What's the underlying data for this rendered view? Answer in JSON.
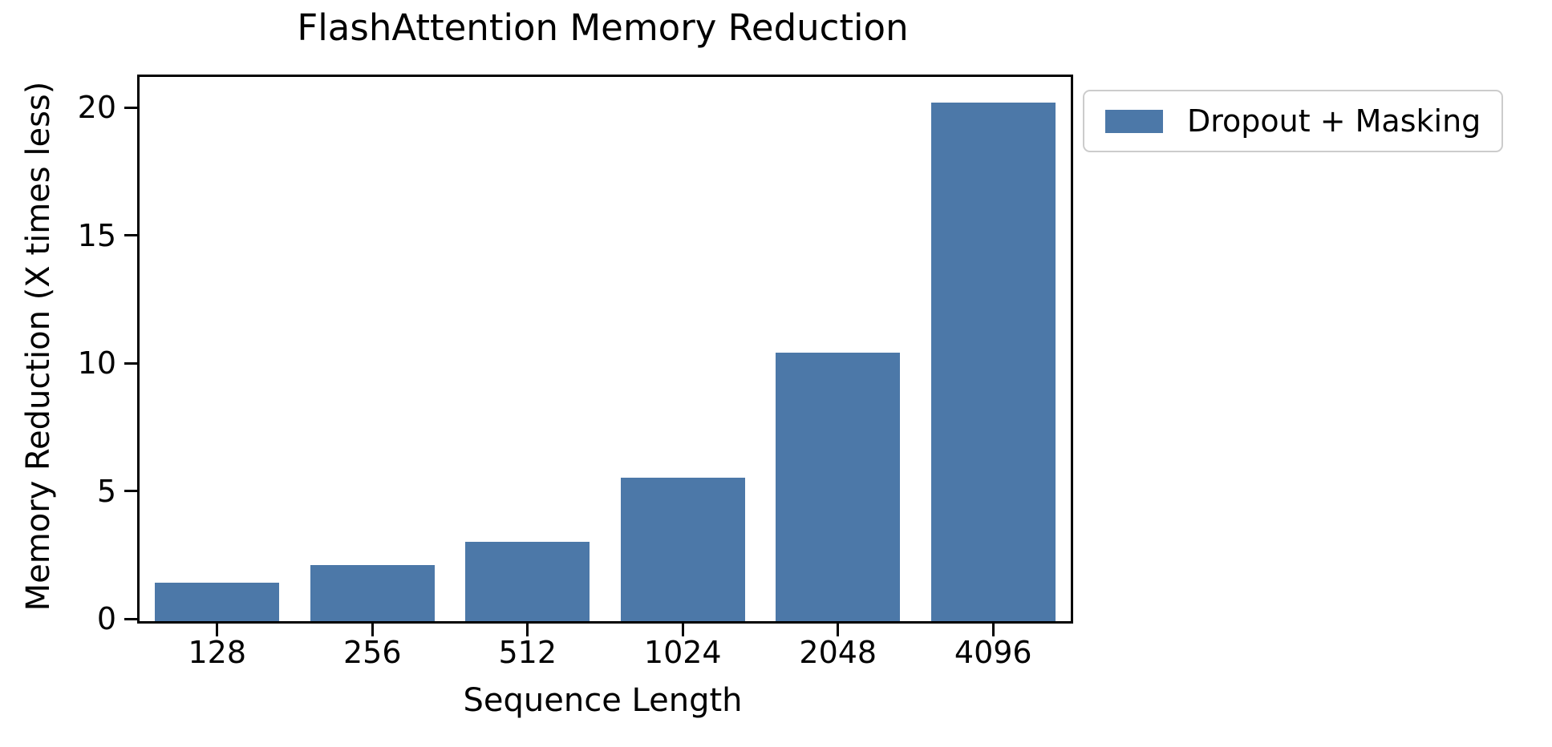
{
  "chart_data": {
    "type": "bar",
    "title": "FlashAttention Memory Reduction",
    "xlabel": "Sequence Length",
    "ylabel": "Memory Reduction (X times less)",
    "categories": [
      "128",
      "256",
      "512",
      "1024",
      "2048",
      "4096"
    ],
    "series": [
      {
        "name": "Dropout + Masking",
        "values": [
          1.5,
          2.2,
          3.1,
          5.6,
          10.5,
          20.3
        ],
        "color": "#4c78a8"
      }
    ],
    "yticks": [
      0,
      5,
      10,
      15,
      20
    ],
    "ylim": [
      0,
      21.3
    ],
    "grid": "off",
    "legend_position": "outside-upper-right",
    "colors": {
      "bar": "#4c78a8",
      "axis": "#000000",
      "legend_border": "#cccccc",
      "background": "#ffffff"
    }
  }
}
